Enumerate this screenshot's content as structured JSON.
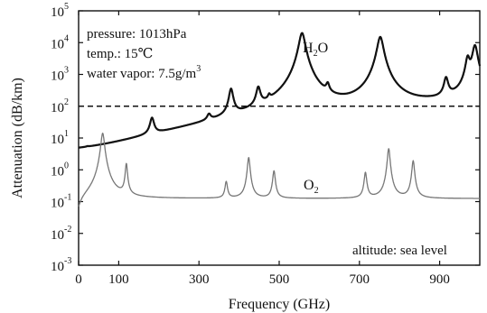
{
  "chart_data": {
    "type": "line",
    "xlabel": "Frequency (GHz)",
    "ylabel": "Attenuation (dB/km)",
    "xlim": [
      0,
      1000
    ],
    "ylim_log10": [
      -3,
      5
    ],
    "y_scale": "log",
    "x_ticks": [
      {
        "value": 0,
        "label": "0"
      },
      {
        "value": 100,
        "label": "100"
      },
      {
        "value": 300,
        "label": "300"
      },
      {
        "value": 500,
        "label": "500"
      },
      {
        "value": 700,
        "label": "700"
      },
      {
        "value": 900,
        "label": "900"
      }
    ],
    "y_ticks": [
      {
        "exp": 5,
        "base": "10",
        "sup": "5"
      },
      {
        "exp": 4,
        "base": "10",
        "sup": "4"
      },
      {
        "exp": 3,
        "base": "10",
        "sup": "3"
      },
      {
        "exp": 2,
        "base": "10",
        "sup": "2"
      },
      {
        "exp": 1,
        "base": "10",
        "sup": "1"
      },
      {
        "exp": 0,
        "base": "10",
        "sup": "0"
      },
      {
        "exp": -1,
        "base": "10",
        "sup": "-1"
      },
      {
        "exp": -2,
        "base": "10",
        "sup": "-2"
      },
      {
        "exp": -3,
        "base": "10",
        "sup": "-3"
      }
    ],
    "annotations": [
      {
        "id": "pressure",
        "text": "pressure: 1013hPa"
      },
      {
        "id": "temp",
        "text": "temp.: 15℃"
      },
      {
        "id": "vapor",
        "base": "water vapor: 7.5g/m",
        "sup": "3"
      },
      {
        "id": "altitude",
        "text": "altitude: sea level"
      }
    ],
    "series": [
      {
        "name_base": "H",
        "name_sub": "2",
        "name_rest": "O",
        "color": "#111111",
        "style": "solid",
        "width": 2.2,
        "background": 0.006,
        "bg_slope": 2.2,
        "peaks": [
          {
            "f": 22,
            "peak": 0.18,
            "w": 3
          },
          {
            "f": 183,
            "peak": 30,
            "w": 5
          },
          {
            "f": 325,
            "peak": 20,
            "w": 5
          },
          {
            "f": 380,
            "peak": 300,
            "w": 5
          },
          {
            "f": 448,
            "peak": 300,
            "w": 5
          },
          {
            "f": 475,
            "peak": 60,
            "w": 3
          },
          {
            "f": 557,
            "peak": 20000,
            "w": 7
          },
          {
            "f": 621,
            "peak": 240,
            "w": 4
          },
          {
            "f": 752,
            "peak": 15000,
            "w": 7
          },
          {
            "f": 916,
            "peak": 600,
            "w": 5
          },
          {
            "f": 970,
            "peak": 3000,
            "w": 5
          },
          {
            "f": 988,
            "peak": 8000,
            "w": 6
          }
        ]
      },
      {
        "name_base": "O",
        "name_sub": "2",
        "name_rest": "",
        "color": "#777777",
        "style": "solid",
        "width": 1.3,
        "background": 0.004,
        "continuum": 0.12,
        "peaks": [
          {
            "f": 60,
            "peak": 14,
            "w": 4
          },
          {
            "f": 119,
            "peak": 1.4,
            "w": 2.5
          },
          {
            "f": 368,
            "peak": 0.3,
            "w": 3
          },
          {
            "f": 424,
            "peak": 2.3,
            "w": 3
          },
          {
            "f": 487,
            "peak": 0.8,
            "w": 3
          },
          {
            "f": 715,
            "peak": 0.7,
            "w": 3
          },
          {
            "f": 773,
            "peak": 4.5,
            "w": 3
          },
          {
            "f": 834,
            "peak": 1.8,
            "w": 3
          }
        ]
      }
    ],
    "reference_line": {
      "y": 100,
      "style": "dashed"
    },
    "grid": false
  }
}
